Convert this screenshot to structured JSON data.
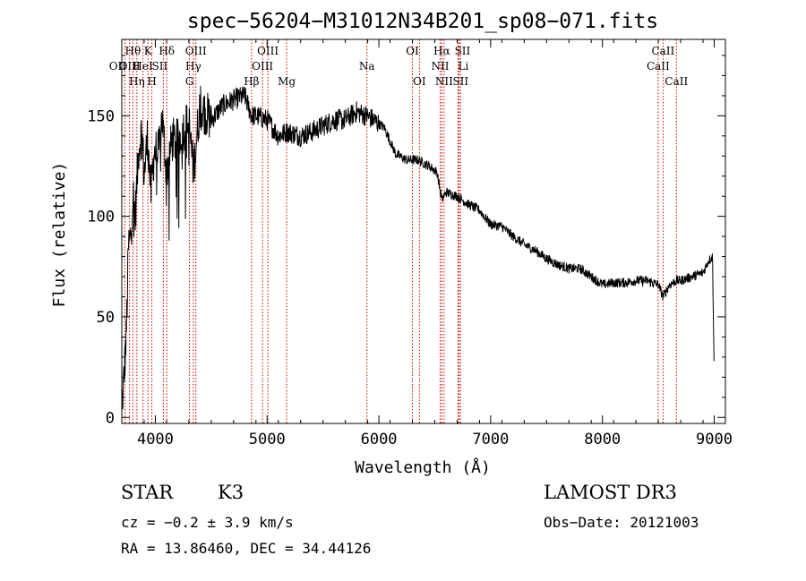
{
  "chart_data": {
    "type": "line",
    "title": "spec−56204−M31012N34B201_sp08−071.fits",
    "xlabel": "Wavelength (Å)",
    "ylabel": "Flux (relative)",
    "xlim": [
      3700,
      9100
    ],
    "ylim": [
      -3,
      188
    ],
    "x_ticks": [
      4000,
      5000,
      6000,
      7000,
      8000,
      9000
    ],
    "x_tick_labels": [
      "4000",
      "5000",
      "6000",
      "7000",
      "8000",
      "9000"
    ],
    "y_ticks": [
      0,
      50,
      100,
      150
    ],
    "y_tick_labels": [
      "0",
      "50",
      "100",
      "150"
    ],
    "grid": false,
    "series": [
      {
        "name": "spectrum",
        "color": "#000000",
        "x": [
          3700,
          3720,
          3740,
          3760,
          3780,
          3800,
          3820,
          3850,
          3880,
          3900,
          3930,
          3960,
          3990,
          4030,
          4060,
          4100,
          4150,
          4200,
          4250,
          4300,
          4340,
          4400,
          4500,
          4600,
          4700,
          4800,
          4860,
          4900,
          5000,
          5100,
          5180,
          5300,
          5400,
          5500,
          5600,
          5700,
          5800,
          5890,
          5950,
          6050,
          6150,
          6250,
          6350,
          6450,
          6520,
          6563,
          6600,
          6700,
          6800,
          6900,
          7000,
          7100,
          7200,
          7300,
          7400,
          7500,
          7600,
          7700,
          7800,
          7900,
          8000,
          8100,
          8200,
          8300,
          8400,
          8500,
          8542,
          8600,
          8662,
          8700,
          8800,
          8900,
          8950,
          8985,
          9000
        ],
        "y": [
          5,
          20,
          40,
          85,
          90,
          112,
          100,
          133,
          143,
          120,
          140,
          112,
          132,
          132,
          150,
          122,
          138,
          137,
          143,
          147,
          123,
          155,
          148,
          155,
          158,
          160,
          150,
          150,
          148,
          140,
          142,
          140,
          142,
          145,
          148,
          148,
          152,
          150,
          148,
          144,
          131,
          128,
          128,
          125,
          122,
          108,
          112,
          110,
          106,
          103,
          96,
          95,
          90,
          86,
          83,
          79,
          76,
          74,
          74,
          70,
          66,
          67,
          67,
          68,
          68,
          66,
          60,
          66,
          68,
          68,
          70,
          72,
          78,
          80,
          20
        ],
        "noise_amplitude": 9
      }
    ],
    "line_markers": [
      {
        "label": "OII",
        "wavelength": 3727,
        "row": 2,
        "label_dx": -8
      },
      {
        "label": "Hθ",
        "wavelength": 3799,
        "row": 1,
        "label_dx": 0
      },
      {
        "label": "OIII",
        "wavelength": 3769,
        "row": 2,
        "label_dx": 0
      },
      {
        "label": "Hη",
        "wavelength": 3835,
        "row": 3,
        "label_dx": 0
      },
      {
        "label": "HeI",
        "wavelength": 3889,
        "row": 2,
        "label_dx": 0
      },
      {
        "label": "K",
        "wavelength": 3934,
        "row": 1,
        "label_dx": 0
      },
      {
        "label": "SII",
        "wavelength": 4072,
        "row": 2,
        "label_dx": -4
      },
      {
        "label": "H",
        "wavelength": 3969,
        "row": 3,
        "label_dx": 0
      },
      {
        "label": "Hδ",
        "wavelength": 4102,
        "row": 1,
        "label_dx": 0
      },
      {
        "label": "OIII",
        "wavelength": 4363,
        "row": 1,
        "label_dx": 0
      },
      {
        "label": "Hγ",
        "wavelength": 4340,
        "row": 2,
        "label_dx": 0
      },
      {
        "label": "G",
        "wavelength": 4305,
        "row": 3,
        "label_dx": 0
      },
      {
        "label": "Hβ",
        "wavelength": 4861,
        "row": 3,
        "label_dx": 0
      },
      {
        "label": "OIII",
        "wavelength": 5007,
        "row": 1,
        "label_dx": 0
      },
      {
        "label": "OIII",
        "wavelength": 4959,
        "row": 2,
        "label_dx": 0
      },
      {
        "label": "Mg",
        "wavelength": 5175,
        "row": 3,
        "label_dx": 0
      },
      {
        "label": "Na",
        "wavelength": 5893,
        "row": 2,
        "label_dx": 0
      },
      {
        "label": "OI",
        "wavelength": 6300,
        "row": 1,
        "label_dx": 0
      },
      {
        "label": "OI",
        "wavelength": 6363,
        "row": 3,
        "label_dx": 0
      },
      {
        "label": "Hα",
        "wavelength": 6563,
        "row": 1,
        "label_dx": 0
      },
      {
        "label": "NII",
        "wavelength": 6548,
        "row": 2,
        "label_dx": 0
      },
      {
        "label": "NII",
        "wavelength": 6583,
        "row": 3,
        "label_dx": 0
      },
      {
        "label": "SII",
        "wavelength": 6716,
        "row": 1,
        "label_dx": 4
      },
      {
        "label": "Li",
        "wavelength": 6708,
        "row": 2,
        "label_dx": 6
      },
      {
        "label": "SII",
        "wavelength": 6731,
        "row": 3,
        "label_dx": 0
      },
      {
        "label": "CaII",
        "wavelength": 8542,
        "row": 1,
        "label_dx": 0
      },
      {
        "label": "CaII",
        "wavelength": 8498,
        "row": 2,
        "label_dx": 0
      },
      {
        "label": "CaII",
        "wavelength": 8662,
        "row": 3,
        "label_dx": 0
      }
    ],
    "colors": {
      "axis": "#000000",
      "spectrum": "#000000",
      "marker_line": "#cc0000",
      "marker_text": "#000000"
    }
  },
  "info": {
    "object_class": "STAR",
    "subclass": "K3",
    "survey": "LAMOST DR3",
    "redshift_line": "cz = −0.2 ± 3.9 km/s",
    "obs_date": "Obs−Date: 20121003",
    "coordinates": "RA =  13.86460, DEC =  34.44126"
  }
}
